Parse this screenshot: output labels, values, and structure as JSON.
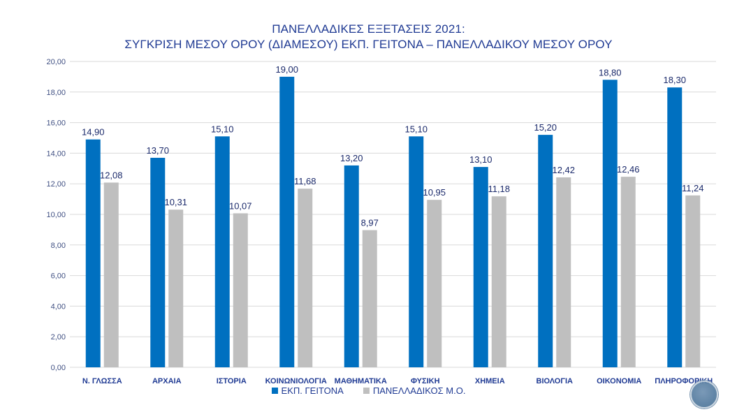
{
  "chart_data": {
    "type": "bar",
    "title": "ΠΑΝΕΛΛΑΔΙΚΕΣ ΕΞΕΤΑΣΕΙΣ 2021:",
    "subtitle": "ΣΥΓΚΡΙΣΗ ΜΕΣΟΥ ΟΡΟΥ (ΔΙΑΜΕΣΟΥ) ΕΚΠ. ΓΕΙΤΟΝΑ – ΠΑΝΕΛΛΑΔΙΚΟΥ ΜΕΣΟΥ ΟΡΟΥ",
    "xlabel": "",
    "ylabel": "",
    "ylim": [
      0,
      20
    ],
    "yticks": [
      "0,00",
      "2,00",
      "4,00",
      "6,00",
      "8,00",
      "10,00",
      "12,00",
      "14,00",
      "16,00",
      "18,00",
      "20,00"
    ],
    "grid": true,
    "legend_position": "bottom",
    "categories": [
      "Ν. ΓΛΩΣΣΑ",
      "ΑΡΧΑΙΑ",
      "ΙΣΤΟΡΙΑ",
      "ΚΟΙΝΩΝΙΟΛΟΓΙΑ",
      "ΜΑΘΗΜΑΤΙΚΑ",
      "ΦΥΣΙΚΗ",
      "ΧΗΜΕΙΑ",
      "ΒΙΟΛΟΓΙΑ",
      "ΟΙΚΟΝΟΜΙΑ",
      "ΠΛΗΡΟΦΟΡΙΚΗ"
    ],
    "series": [
      {
        "name": "ΕΚΠ. ΓΕΙΤΟΝΑ",
        "color": "#0070c0",
        "values": [
          14.9,
          13.7,
          15.1,
          19.0,
          13.2,
          15.1,
          13.1,
          15.2,
          18.8,
          18.3
        ],
        "labels": [
          "14,90",
          "13,70",
          "15,10",
          "19,00",
          "13,20",
          "15,10",
          "13,10",
          "15,20",
          "18,80",
          "18,30"
        ]
      },
      {
        "name": "ΠΑΝΕΛΛΑΔΙΚΟΣ Μ.Ο.",
        "color": "#bfbfbf",
        "values": [
          12.08,
          10.31,
          10.07,
          11.68,
          8.97,
          10.95,
          11.18,
          12.42,
          12.46,
          11.24
        ],
        "labels": [
          "12,08",
          "10,31",
          "10,07",
          "11,68",
          "8,97",
          "10,95",
          "11,18",
          "12,42",
          "12,46",
          "11,24"
        ]
      }
    ]
  },
  "logo": {
    "icon": "circular-logo-watermark"
  }
}
